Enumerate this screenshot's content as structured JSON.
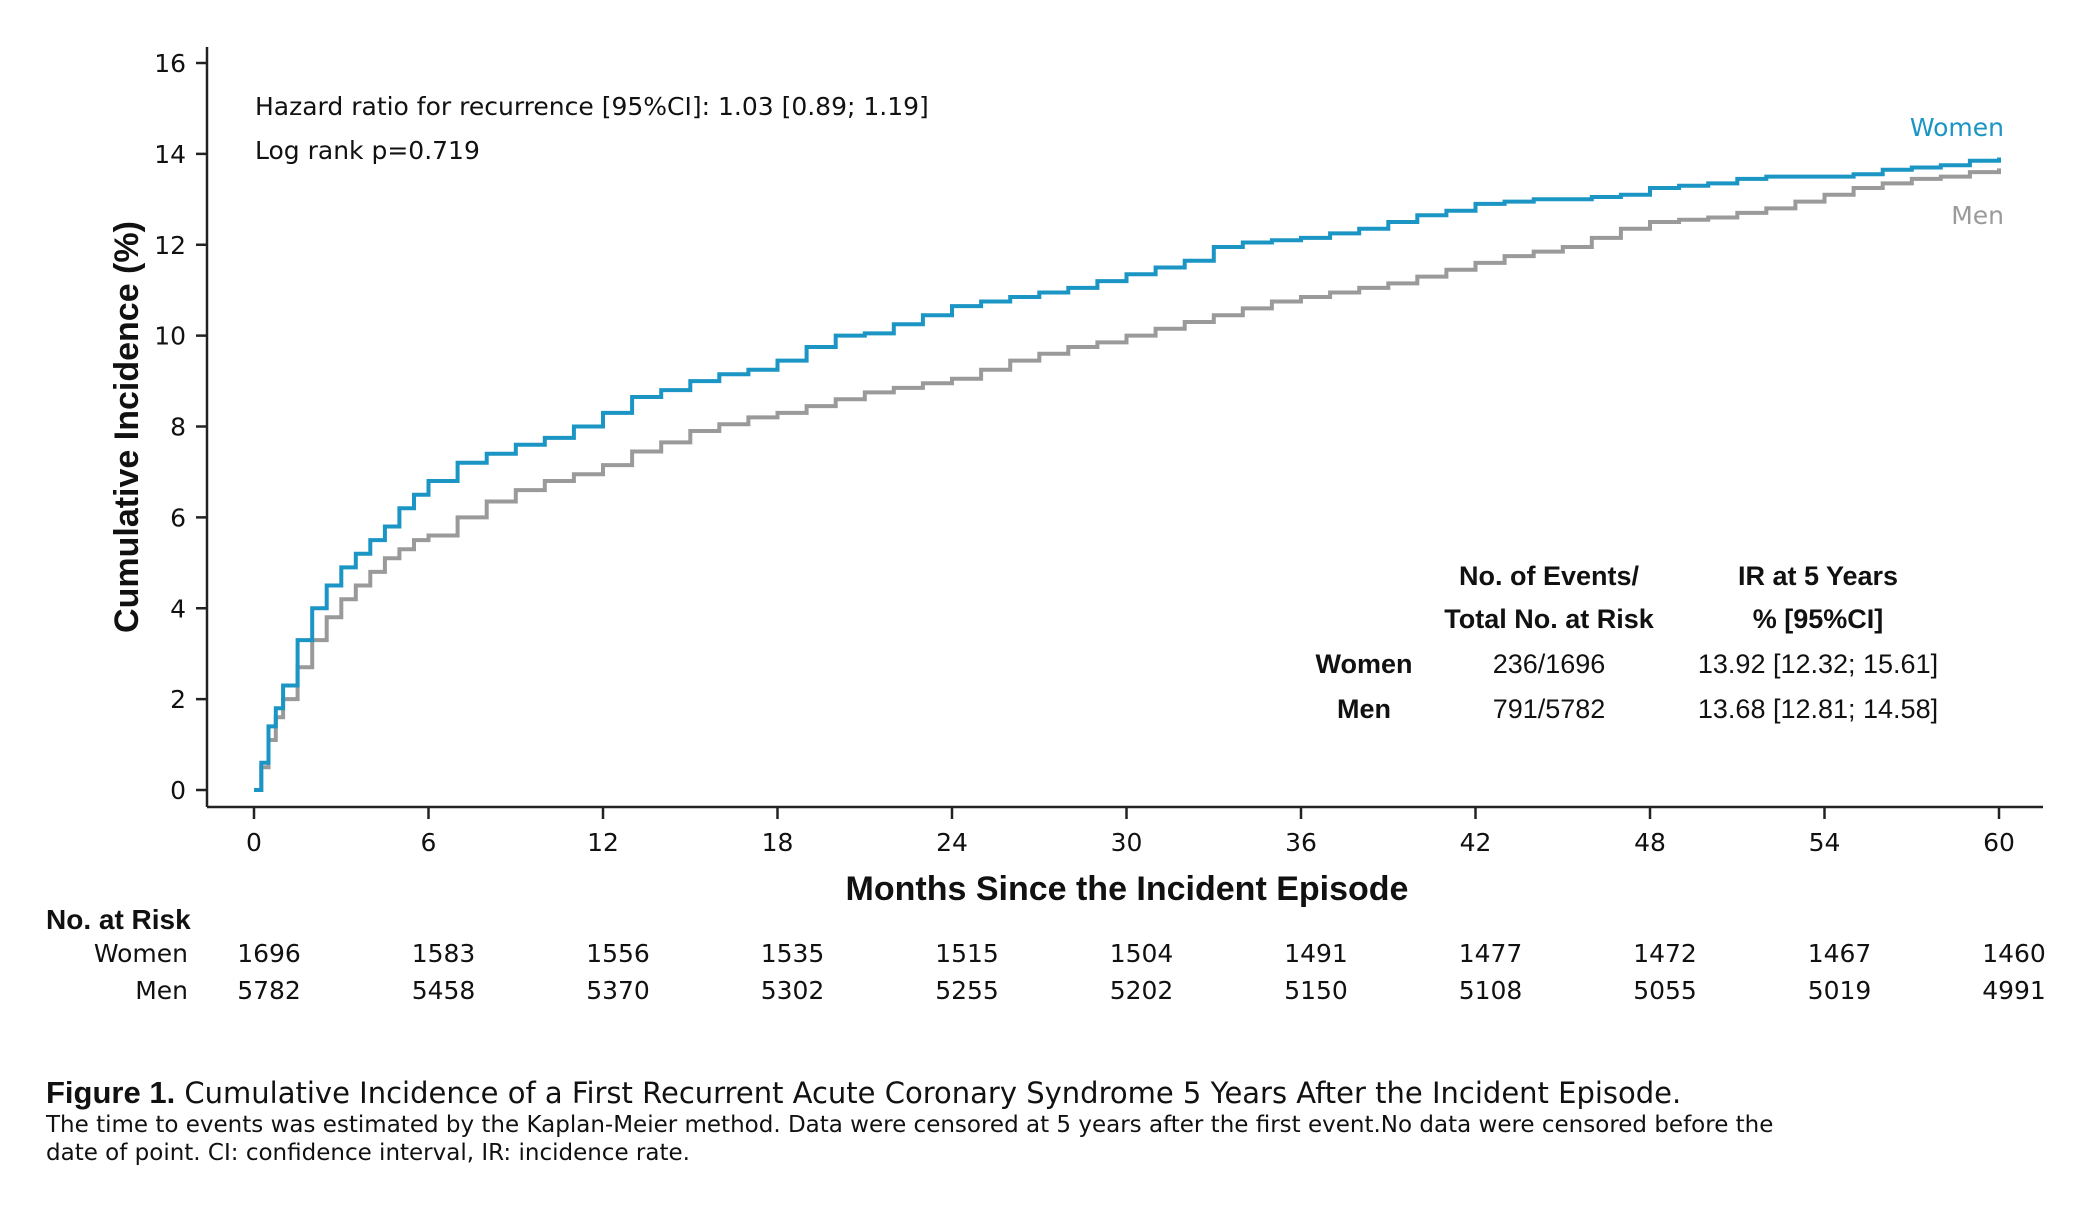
{
  "chart_data": {
    "type": "line",
    "subtype": "kaplan-meier cumulative incidence step curve",
    "ylabel": "Cumulative Incidence (%)",
    "xlabel": "Months Since the Incident Episode",
    "xlim": [
      0,
      60
    ],
    "ylim": [
      0,
      16
    ],
    "xticks": [
      0,
      6,
      12,
      18,
      24,
      30,
      36,
      42,
      48,
      54,
      60
    ],
    "yticks": [
      0,
      2,
      4,
      6,
      8,
      10,
      12,
      14,
      16
    ],
    "grid": false,
    "colors": {
      "Women": "#1a95c4",
      "Men": "#9a9a9a"
    },
    "series": [
      {
        "name": "Women",
        "x": [
          0,
          0.25,
          0.5,
          0.75,
          1,
          1.5,
          2,
          2.5,
          3,
          3.5,
          4,
          4.5,
          5,
          5.5,
          6,
          7,
          8,
          9,
          10,
          11,
          12,
          13,
          14,
          15,
          16,
          17,
          18,
          19,
          20,
          21,
          22,
          23,
          24,
          25,
          26,
          27,
          28,
          29,
          30,
          31,
          32,
          33,
          34,
          35,
          36,
          37,
          38,
          39,
          40,
          41,
          42,
          43,
          44,
          45,
          46,
          47,
          48,
          49,
          50,
          51,
          52,
          53,
          54,
          55,
          56,
          57,
          58,
          59,
          60
        ],
        "y": [
          0,
          0.6,
          1.4,
          1.8,
          2.3,
          3.3,
          4.0,
          4.5,
          4.9,
          5.2,
          5.5,
          5.8,
          6.2,
          6.5,
          6.8,
          7.2,
          7.4,
          7.6,
          7.75,
          8.0,
          8.3,
          8.65,
          8.8,
          9.0,
          9.15,
          9.25,
          9.45,
          9.75,
          10.0,
          10.05,
          10.25,
          10.45,
          10.65,
          10.75,
          10.85,
          10.95,
          11.05,
          11.2,
          11.35,
          11.5,
          11.65,
          11.95,
          12.05,
          12.1,
          12.15,
          12.25,
          12.35,
          12.5,
          12.65,
          12.75,
          12.9,
          12.95,
          13.0,
          13.0,
          13.05,
          13.1,
          13.25,
          13.3,
          13.35,
          13.45,
          13.5,
          13.5,
          13.5,
          13.55,
          13.65,
          13.7,
          13.75,
          13.85,
          13.92
        ]
      },
      {
        "name": "Men",
        "x": [
          0,
          0.25,
          0.5,
          0.75,
          1,
          1.5,
          2,
          2.5,
          3,
          3.5,
          4,
          4.5,
          5,
          5.5,
          6,
          7,
          8,
          9,
          10,
          11,
          12,
          13,
          14,
          15,
          16,
          17,
          18,
          19,
          20,
          21,
          22,
          23,
          24,
          25,
          26,
          27,
          28,
          29,
          30,
          31,
          32,
          33,
          34,
          35,
          36,
          37,
          38,
          39,
          40,
          41,
          42,
          43,
          44,
          45,
          46,
          47,
          48,
          49,
          50,
          51,
          52,
          53,
          54,
          55,
          56,
          57,
          58,
          59,
          60
        ],
        "y": [
          0,
          0.5,
          1.1,
          1.6,
          2.0,
          2.7,
          3.3,
          3.8,
          4.2,
          4.5,
          4.8,
          5.1,
          5.3,
          5.5,
          5.6,
          6.0,
          6.35,
          6.6,
          6.8,
          6.95,
          7.15,
          7.45,
          7.65,
          7.9,
          8.05,
          8.2,
          8.3,
          8.45,
          8.6,
          8.75,
          8.85,
          8.95,
          9.05,
          9.25,
          9.45,
          9.6,
          9.75,
          9.85,
          10.0,
          10.15,
          10.3,
          10.45,
          10.6,
          10.75,
          10.85,
          10.95,
          11.05,
          11.15,
          11.3,
          11.45,
          11.6,
          11.75,
          11.85,
          11.95,
          12.15,
          12.35,
          12.5,
          12.55,
          12.6,
          12.7,
          12.8,
          12.95,
          13.1,
          13.25,
          13.35,
          13.45,
          13.5,
          13.6,
          13.68
        ]
      }
    ],
    "annotations": {
      "hr": "Hazard ratio for recurrence [95%CI]: 1.03 [0.89; 1.19]",
      "logrank": "Log rank p=0.719"
    },
    "series_labels": {
      "women": "Women",
      "men": "Men"
    },
    "summary_table": {
      "header_col1_line1": "No. of Events/",
      "header_col1_line2": "Total No. at Risk",
      "header_col2_line1": "IR at 5 Years",
      "header_col2_line2": "% [95%CI]",
      "rows": [
        {
          "group": "Women",
          "events": "236/1696",
          "ir": "13.92 [12.32; 15.61]"
        },
        {
          "group": "Men",
          "events": "791/5782",
          "ir": "13.68 [12.81; 14.58]"
        }
      ]
    },
    "risk_table": {
      "title": "No. at Risk",
      "rows": [
        {
          "group": "Women",
          "values": [
            "1696",
            "1583",
            "1556",
            "1535",
            "1515",
            "1504",
            "1491",
            "1477",
            "1472",
            "1467",
            "1460"
          ]
        },
        {
          "group": "Men",
          "values": [
            "5782",
            "5458",
            "5370",
            "5302",
            "5255",
            "5202",
            "5150",
            "5108",
            "5055",
            "5019",
            "4991"
          ]
        }
      ]
    }
  },
  "caption": {
    "label": "Figure 1.",
    "title": " Cumulative Incidence of a First Recurrent Acute Coronary Syndrome 5 Years After the Incident Episode.",
    "note_line1": "The time to events was estimated by the Kaplan-Meier method. Data were censored at 5 years after the first event.No data were censored before the",
    "note_line2": "date of point. CI: confidence interval, IR: incidence rate."
  }
}
